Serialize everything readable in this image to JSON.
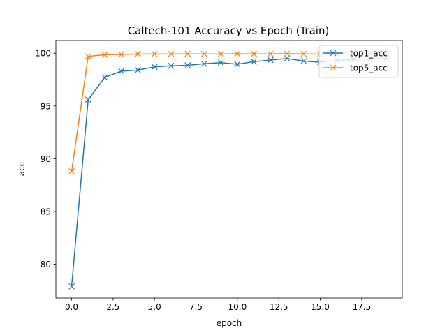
{
  "chart_data": {
    "type": "line",
    "title": "Caltech-101 Accuracy vs Epoch (Train)",
    "xlabel": "epoch",
    "ylabel": "acc",
    "xlim": [
      -0.95,
      19.95
    ],
    "ylim": [
      76.8,
      101.2
    ],
    "x_ticks": [
      0.0,
      2.5,
      5.0,
      7.5,
      10.0,
      12.5,
      15.0,
      17.5
    ],
    "x_tick_labels": [
      "0.0",
      "2.5",
      "5.0",
      "7.5",
      "10.0",
      "12.5",
      "15.0",
      "17.5"
    ],
    "y_ticks": [
      80,
      85,
      90,
      95,
      100
    ],
    "y_tick_labels": [
      "80",
      "85",
      "90",
      "95",
      "100"
    ],
    "grid": false,
    "legend_position": "top-right",
    "x": [
      0,
      1,
      2,
      3,
      4,
      5,
      6,
      7,
      8,
      9,
      10,
      11,
      12,
      13,
      14,
      15,
      16,
      17,
      18,
      19
    ],
    "series": [
      {
        "name": "top1_acc",
        "color": "#1f77b4",
        "marker": "x",
        "values": [
          77.9,
          95.6,
          97.7,
          98.3,
          98.4,
          98.7,
          98.8,
          98.85,
          99.0,
          99.1,
          98.95,
          99.2,
          99.35,
          99.5,
          99.25,
          99.15,
          99.3,
          99.4,
          99.45,
          99.5
        ]
      },
      {
        "name": "top5_acc",
        "color": "#ff7f0e",
        "marker": "x",
        "values": [
          88.8,
          99.7,
          99.85,
          99.88,
          99.92,
          99.92,
          99.92,
          99.93,
          99.93,
          99.92,
          99.94,
          99.93,
          99.93,
          99.95,
          99.93,
          99.92,
          99.93,
          99.94,
          99.94,
          99.95
        ]
      }
    ]
  }
}
